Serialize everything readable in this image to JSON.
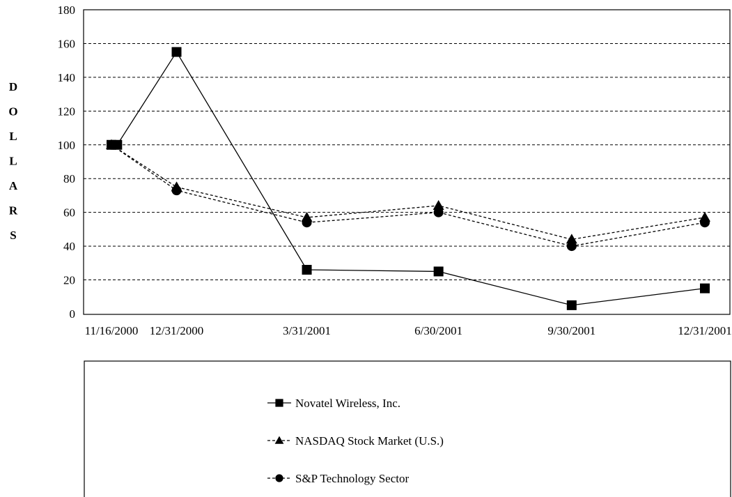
{
  "chart_data": {
    "type": "line",
    "title": "",
    "xlabel": "",
    "ylabel": "DOLLARS",
    "ylabel_letters": [
      "D",
      "O",
      "L",
      "L",
      "A",
      "R",
      "S"
    ],
    "ylim": [
      0,
      180
    ],
    "yticks": [
      0,
      20,
      40,
      60,
      80,
      100,
      120,
      140,
      160,
      180
    ],
    "grid": "horizontal-dashed",
    "legend_position": "bottom",
    "x": [
      "2000-11-16",
      "2000-12-31",
      "2001-03-31",
      "2001-06-30",
      "2001-09-30",
      "2001-12-31"
    ],
    "x_tick_labels": [
      "11/16/2000",
      "12/31/2000",
      "3/31/2001",
      "6/30/2001",
      "9/30/2001",
      "12/31/2001"
    ],
    "series": [
      {
        "name": "Novatel Wireless, Inc.",
        "marker": "square",
        "line": "solid",
        "x": [
          "2000-11-16",
          "2000-11-20",
          "2000-12-31",
          "2001-03-31",
          "2001-06-30",
          "2001-09-30",
          "2001-12-31"
        ],
        "values": [
          100,
          100,
          155,
          26,
          25,
          5,
          15
        ]
      },
      {
        "name": "NASDAQ Stock Market (U.S.)",
        "marker": "triangle",
        "line": "dashed",
        "values": [
          100,
          75,
          57,
          64,
          44,
          57
        ]
      },
      {
        "name": "S&P Technology Sector",
        "marker": "circle",
        "line": "dashed",
        "values": [
          100,
          73,
          54,
          60,
          40,
          54
        ]
      }
    ]
  },
  "legend": {
    "items": [
      {
        "label": "Novatel Wireless, Inc.",
        "marker": "square",
        "line": "solid"
      },
      {
        "label": "NASDAQ Stock Market (U.S.)",
        "marker": "triangle",
        "line": "dashed"
      },
      {
        "label": "S&P Technology Sector",
        "marker": "circle",
        "line": "dashed"
      }
    ]
  }
}
